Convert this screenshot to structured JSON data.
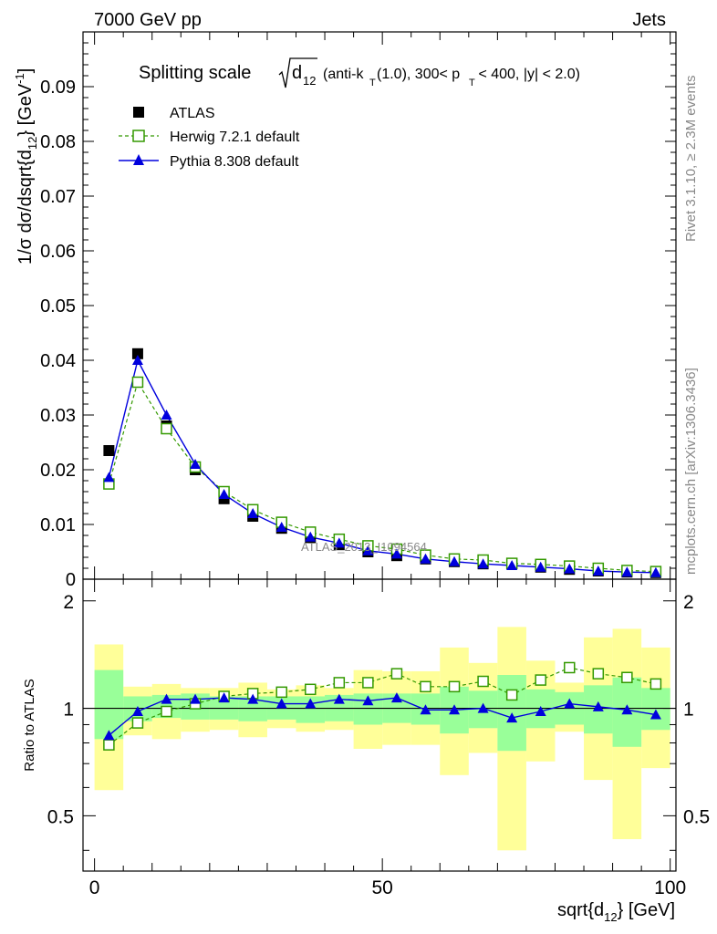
{
  "header": {
    "left": "7000 GeV pp",
    "right": "Jets"
  },
  "side": {
    "rivet": "Rivet 3.1.10, ≥ 2.3M events",
    "mcplots": "mcplots.cern.ch [arXiv:1306.3436]"
  },
  "watermark": "ATLAS_2013_I1094564",
  "colors": {
    "atlas": "#000000",
    "herwig": "#339900",
    "pythia": "#0000dd",
    "band_inner": "#99ff99",
    "band_outer": "#ffff99"
  },
  "chart_data": [
    {
      "type": "scatter",
      "title_prefix": "Splitting scale",
      "title_var": "d",
      "title_sub": "12",
      "title_rest_a": "(anti-k",
      "title_rest_sub": "T",
      "title_rest_b": "(1.0), 300< p",
      "title_rest_sub2": "T",
      "title_rest_c": " < 400, |y| < 2.0)",
      "ylabel": "1/σ dσ/dsqrt{d",
      "ylabel_sub": "12",
      "ylabel_rest": "} [GeV",
      "ylabel_sup": "-1",
      "ylabel_end": "]",
      "xlim": [
        -2,
        101
      ],
      "ylim": [
        0,
        0.1
      ],
      "yticks": [
        0,
        0.01,
        0.02,
        0.03,
        0.04,
        0.05,
        0.06,
        0.07,
        0.08,
        0.09
      ],
      "ytick_labels": [
        "0",
        "0.01",
        "0.02",
        "0.03",
        "0.04",
        "0.05",
        "0.06",
        "0.07",
        "0.08",
        "0.09"
      ],
      "legend": [
        {
          "name": "ATLAS",
          "marker": "square-filled"
        },
        {
          "name": "Herwig 7.2.1 default",
          "marker": "square-open"
        },
        {
          "name": "Pythia 8.308 default",
          "marker": "triangle"
        }
      ],
      "x": [
        2.5,
        7.5,
        12.5,
        17.5,
        22.5,
        27.5,
        32.5,
        37.5,
        42.5,
        47.5,
        52.5,
        57.5,
        62.5,
        67.5,
        72.5,
        77.5,
        82.5,
        87.5,
        92.5,
        97.5
      ],
      "series": [
        {
          "name": "ATLAS",
          "values": [
            0.0235,
            0.0412,
            0.028,
            0.02,
            0.0147,
            0.0115,
            0.0093,
            0.0076,
            0.0063,
            0.005,
            0.0043,
            0.0037,
            0.0032,
            0.0028,
            0.0028,
            0.0022,
            0.0018,
            0.0015,
            0.0013,
            0.0012
          ]
        },
        {
          "name": "Herwig 7.2.1 default",
          "values": [
            0.0174,
            0.036,
            0.0275,
            0.0205,
            0.016,
            0.0127,
            0.0104,
            0.0086,
            0.0073,
            0.0061,
            0.0055,
            0.0044,
            0.0037,
            0.0035,
            0.0029,
            0.0027,
            0.0024,
            0.002,
            0.0016,
            0.0014
          ]
        },
        {
          "name": "Pythia 8.308 default",
          "values": [
            0.0186,
            0.04,
            0.03,
            0.021,
            0.0155,
            0.012,
            0.0095,
            0.0077,
            0.0066,
            0.0052,
            0.0046,
            0.0037,
            0.0032,
            0.0028,
            0.0025,
            0.0022,
            0.0019,
            0.0015,
            0.0013,
            0.0012
          ]
        }
      ]
    },
    {
      "type": "scatter",
      "ylabel": "Ratio to ATLAS",
      "xlabel": "sqrt{d",
      "xlabel_sub": "12",
      "xlabel_rest": "} [GeV]",
      "xlim": [
        -2,
        101
      ],
      "ylim": [
        0.35,
        2.3
      ],
      "xticks": [
        0,
        50,
        100
      ],
      "xtick_labels": [
        "0",
        "50",
        "100"
      ],
      "yticks": [
        0.5,
        1,
        2
      ],
      "ytick_labels": [
        "0.5",
        "1",
        "2"
      ],
      "x": [
        2.5,
        7.5,
        12.5,
        17.5,
        22.5,
        27.5,
        32.5,
        37.5,
        42.5,
        47.5,
        52.5,
        57.5,
        62.5,
        67.5,
        72.5,
        77.5,
        82.5,
        87.5,
        92.5,
        97.5
      ],
      "band_inner": {
        "low": [
          0.82,
          0.92,
          0.94,
          0.93,
          0.93,
          0.92,
          0.93,
          0.91,
          0.92,
          0.9,
          0.91,
          0.9,
          0.85,
          0.88,
          0.76,
          0.88,
          0.9,
          0.85,
          0.78,
          0.87
        ],
        "high": [
          1.28,
          1.08,
          1.09,
          1.1,
          1.08,
          1.08,
          1.08,
          1.08,
          1.09,
          1.1,
          1.1,
          1.1,
          1.15,
          1.12,
          1.24,
          1.13,
          1.11,
          1.16,
          1.22,
          1.14
        ]
      },
      "band_outer": {
        "low": [
          0.59,
          0.84,
          0.82,
          0.86,
          0.87,
          0.83,
          0.88,
          0.86,
          0.87,
          0.77,
          0.79,
          0.79,
          0.65,
          0.75,
          0.4,
          0.71,
          0.86,
          0.63,
          0.43,
          0.68
        ],
        "high": [
          1.51,
          1.15,
          1.17,
          1.14,
          1.14,
          1.18,
          1.13,
          1.16,
          1.14,
          1.28,
          1.27,
          1.27,
          1.48,
          1.34,
          1.69,
          1.36,
          1.18,
          1.58,
          1.67,
          1.48
        ]
      },
      "series": [
        {
          "name": "Herwig 7.2.1 default",
          "values": [
            0.79,
            0.91,
            0.98,
            1.03,
            1.08,
            1.1,
            1.11,
            1.13,
            1.18,
            1.18,
            1.25,
            1.15,
            1.15,
            1.19,
            1.09,
            1.2,
            1.3,
            1.25,
            1.22,
            1.17
          ]
        },
        {
          "name": "Pythia 8.308 default",
          "values": [
            0.84,
            0.98,
            1.06,
            1.06,
            1.07,
            1.06,
            1.03,
            1.03,
            1.06,
            1.05,
            1.07,
            0.99,
            0.99,
            1.0,
            0.94,
            0.98,
            1.03,
            1.01,
            0.99,
            0.96
          ]
        }
      ]
    }
  ]
}
